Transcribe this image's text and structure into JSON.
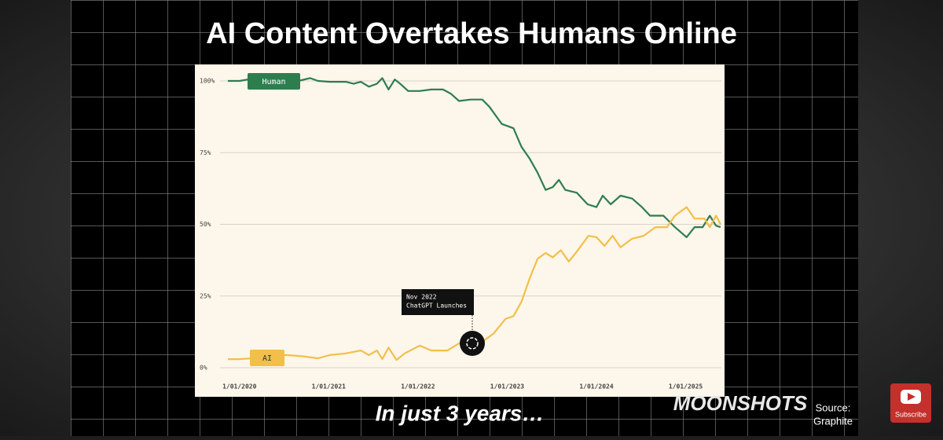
{
  "header": {
    "title": "AI Content Overtakes Humans Online"
  },
  "chart_data": {
    "type": "line",
    "xlim": [
      2019.87,
      2025.4
    ],
    "xticks": [
      {
        "value": 2020,
        "label": "1/01/2020"
      },
      {
        "value": 2021,
        "label": "1/01/2021"
      },
      {
        "value": 2022,
        "label": "1/01/2022"
      },
      {
        "value": 2023,
        "label": "1/01/2023"
      },
      {
        "value": 2024,
        "label": "1/01/2024"
      },
      {
        "value": 2025,
        "label": "1/01/2025"
      }
    ],
    "ylim": [
      0,
      100
    ],
    "yticks": [
      {
        "value": 0,
        "label": "0%"
      },
      {
        "value": 25,
        "label": "25%"
      },
      {
        "value": 50,
        "label": "50%"
      },
      {
        "value": 75,
        "label": "75%"
      },
      {
        "value": 100,
        "label": "100%"
      }
    ],
    "grid": true,
    "series": [
      {
        "name": "Human",
        "color": "#2e7d4f",
        "x": [
          2019.87,
          2020,
          2020.09,
          2020.22,
          2020.35,
          2020.48,
          2020.66,
          2020.79,
          2020.88,
          2021.01,
          2021.19,
          2021.28,
          2021.36,
          2021.45,
          2021.54,
          2021.6,
          2021.67,
          2021.74,
          2021.8,
          2021.89,
          2022.02,
          2022.15,
          2022.28,
          2022.37,
          2022.46,
          2022.59,
          2022.72,
          2022.8,
          2022.94,
          2023.07,
          2023.16,
          2023.25,
          2023.34,
          2023.43,
          2023.51,
          2023.58,
          2023.65,
          2023.78,
          2023.9,
          2024,
          2024.07,
          2024.16,
          2024.27,
          2024.4,
          2024.51,
          2024.6,
          2024.75,
          2024.88,
          2025.01,
          2025.1,
          2025.19,
          2025.27,
          2025.34,
          2025.39
        ],
        "values": [
          100,
          100,
          100.5,
          100,
          100,
          100,
          100,
          101,
          100,
          99.7,
          99.7,
          99,
          99.7,
          98,
          99,
          101,
          97,
          100.5,
          99,
          96.5,
          96.5,
          97,
          97,
          95.5,
          93,
          93.5,
          93.5,
          91,
          85,
          83.5,
          77,
          73,
          68,
          62,
          63,
          65.5,
          62,
          61,
          57,
          56,
          60,
          57,
          60,
          59,
          56,
          53,
          53,
          49,
          45.5,
          49,
          49,
          53,
          49.5,
          49
        ]
      },
      {
        "name": "AI",
        "color": "#f2bf4a",
        "x": [
          2019.87,
          2020,
          2020.13,
          2020.35,
          2020.53,
          2020.7,
          2020.88,
          2021.01,
          2021.19,
          2021.36,
          2021.45,
          2021.54,
          2021.6,
          2021.67,
          2021.76,
          2021.85,
          2022.02,
          2022.15,
          2022.33,
          2022.46,
          2022.59,
          2022.72,
          2022.85,
          2022.98,
          2023.07,
          2023.16,
          2023.25,
          2023.34,
          2023.43,
          2023.51,
          2023.6,
          2023.69,
          2023.78,
          2023.91,
          2024,
          2024.09,
          2024.18,
          2024.27,
          2024.4,
          2024.53,
          2024.66,
          2024.79,
          2024.88,
          2025.01,
          2025.1,
          2025.21,
          2025.27,
          2025.34,
          2025.39
        ],
        "values": [
          3,
          3,
          3.3,
          4.4,
          4.4,
          4,
          3.3,
          4.4,
          5,
          6,
          4.4,
          6,
          3,
          7,
          2.7,
          5,
          7.7,
          6,
          6,
          8.5,
          8,
          9,
          12,
          17,
          18,
          23,
          31,
          38,
          40,
          38.5,
          41,
          37,
          40.5,
          46,
          45.5,
          42.5,
          46,
          42,
          45,
          46,
          49,
          49,
          53,
          56,
          52,
          52,
          49,
          53,
          50
        ]
      }
    ],
    "annotation": [
      "Nov 2022",
      "ChatGPT Launches"
    ]
  },
  "caption": "In just 3 years…",
  "brand": "MOONSHOTS",
  "source": [
    "Source:",
    "Graphite"
  ],
  "subscribe": "Subscribe"
}
